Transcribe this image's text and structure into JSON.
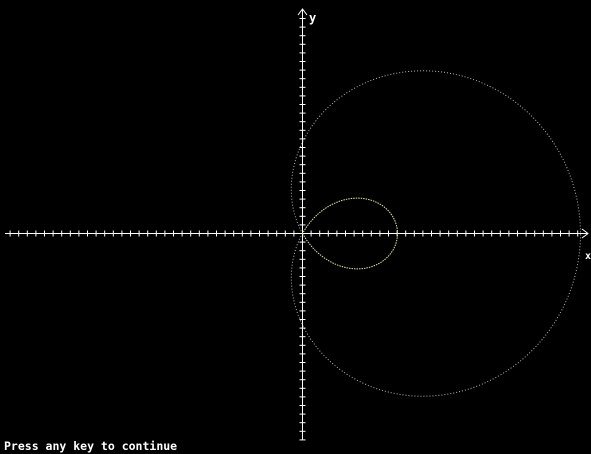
{
  "screen": {
    "axis_labels": {
      "x": "x",
      "y": "y"
    },
    "message": "Press any key to continue"
  }
}
